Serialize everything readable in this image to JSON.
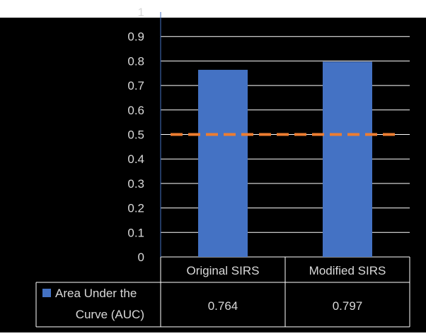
{
  "colors": {
    "background": "#000000",
    "bar": "#4472c4",
    "reference_line": "#ed7d31",
    "grid": "#ffffff",
    "text": "#d9d9d9"
  },
  "chart_data": {
    "type": "bar",
    "categories": [
      "Original SIRS",
      "Modified SIRS"
    ],
    "series": [
      {
        "name": "Area Under the Curve (AUC)",
        "values": [
          0.764,
          0.797
        ]
      }
    ],
    "reference_line": {
      "value": 0.5,
      "style": "dashed"
    },
    "yticks": [
      "0",
      "0.1",
      "0.2",
      "0.3",
      "0.4",
      "0.5",
      "0.6",
      "0.7",
      "0.8",
      "0.9",
      "1"
    ],
    "ylim": [
      0,
      1
    ],
    "grid": true,
    "legend": "in data table",
    "data_table": true,
    "table_values": [
      "0.764",
      "0.797"
    ]
  }
}
